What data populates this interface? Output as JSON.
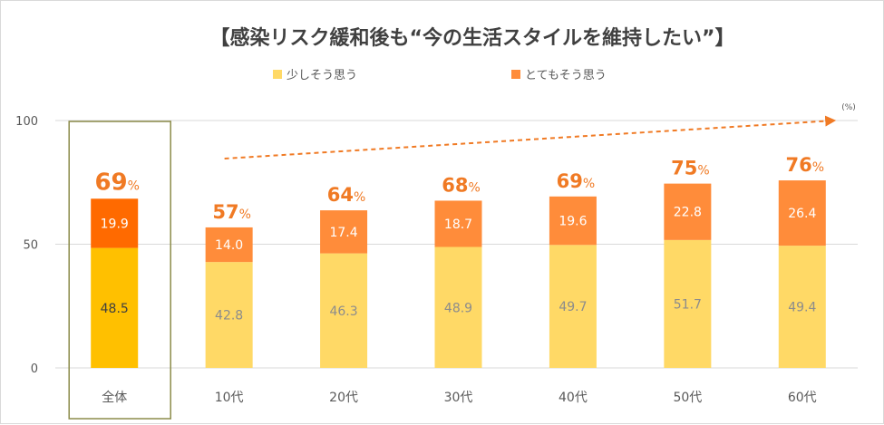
{
  "chart_data": {
    "type": "bar",
    "stacked": true,
    "title": "【感染リスク緩和後も“今の生活スタイルを維持したい”】",
    "unit_note": "(%)",
    "percent_sign": "%",
    "categories": [
      "全体",
      "10代",
      "20代",
      "30代",
      "40代",
      "50代",
      "60代"
    ],
    "series": [
      {
        "name": "少しそう思う",
        "values": [
          48.5,
          42.8,
          46.3,
          48.9,
          49.7,
          51.7,
          49.4
        ],
        "color": "#ffd966",
        "highlight_color": "#ffc000"
      },
      {
        "name": "とてもそう思う",
        "values": [
          19.9,
          14.0,
          17.4,
          18.7,
          19.6,
          22.8,
          26.4
        ],
        "color": "#ff8c3a",
        "highlight_color": "#ff6a00"
      }
    ],
    "totals": [
      69,
      57,
      64,
      68,
      69,
      75,
      76
    ],
    "highlight_category": "全体",
    "ylim": [
      0,
      100
    ],
    "yticks": [
      0,
      50,
      100
    ],
    "grid": true,
    "legend_position": "top",
    "trend_arrow": {
      "from_category": "10代",
      "to_category": "60代",
      "color": "#f07a24",
      "style": "dashed"
    },
    "colors": {
      "total_label": "#f07a24",
      "axis_text": "#595959",
      "grid": "#d9d9d9",
      "highlight_box": "#8c8c4a"
    }
  }
}
